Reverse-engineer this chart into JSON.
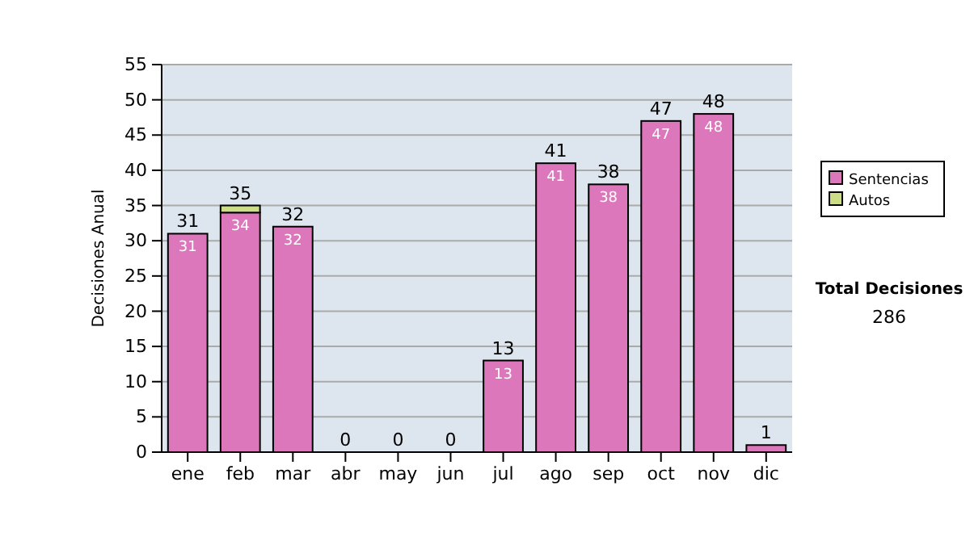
{
  "chart_data": {
    "type": "bar",
    "stacked": true,
    "ylabel": "Decisiones Anual",
    "categories": [
      "ene",
      "feb",
      "mar",
      "abr",
      "may",
      "jun",
      "jul",
      "ago",
      "sep",
      "oct",
      "nov",
      "dic"
    ],
    "series": [
      {
        "name": "Sentencias",
        "color": "#dd77bb",
        "values": [
          31,
          34,
          32,
          0,
          0,
          0,
          13,
          41,
          38,
          47,
          48,
          1
        ],
        "value_labels": [
          "31",
          "34",
          "32",
          null,
          null,
          null,
          "13",
          "41",
          "38",
          "47",
          "48",
          null
        ]
      },
      {
        "name": "Autos",
        "color": "#ccdd88",
        "values": [
          0,
          1,
          0,
          0,
          0,
          0,
          0,
          0,
          0,
          0,
          0,
          0
        ]
      }
    ],
    "totals": [
      "31",
      "35",
      "32",
      "0",
      "0",
      "0",
      "13",
      "41",
      "38",
      "47",
      "48",
      "1"
    ],
    "ylim": [
      0,
      55
    ],
    "yticks": [
      0,
      5,
      10,
      15,
      20,
      25,
      30,
      35,
      40,
      45,
      50,
      55
    ],
    "grid": "y",
    "legend": "right",
    "annotations": [
      "Total Decisiones",
      "286"
    ]
  }
}
